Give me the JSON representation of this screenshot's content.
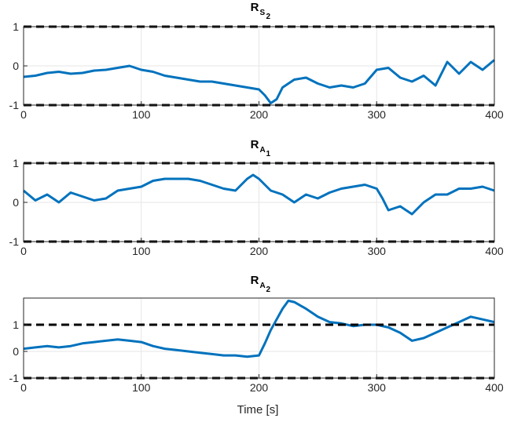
{
  "figure": {
    "xlabel": "Time [s]"
  },
  "colors": {
    "series": "#0072BD",
    "bound": "#000000",
    "grid": "#e6e6e6",
    "axis": "#262626"
  },
  "chart_data": [
    {
      "type": "line",
      "title_main": "R",
      "title_sub1": "S",
      "title_sub2": "2",
      "xlim": [
        0,
        400
      ],
      "ylim": [
        -1,
        1
      ],
      "xticks": [
        0,
        100,
        200,
        300,
        400
      ],
      "yticks": [
        -1,
        0,
        1
      ],
      "bounds": [
        -1,
        1
      ],
      "grid": true,
      "series": [
        {
          "x": [
            0,
            10,
            20,
            30,
            40,
            50,
            60,
            70,
            80,
            90,
            100,
            110,
            120,
            130,
            140,
            150,
            160,
            170,
            180,
            190,
            200,
            205,
            210,
            215,
            220,
            230,
            240,
            250,
            260,
            270,
            280,
            290,
            300,
            310,
            320,
            330,
            340,
            350,
            360,
            370,
            380,
            390,
            400
          ],
          "values": [
            -0.28,
            -0.25,
            -0.18,
            -0.15,
            -0.2,
            -0.18,
            -0.12,
            -0.1,
            -0.05,
            0.0,
            -0.1,
            -0.15,
            -0.25,
            -0.3,
            -0.35,
            -0.4,
            -0.4,
            -0.45,
            -0.5,
            -0.55,
            -0.6,
            -0.75,
            -0.95,
            -0.85,
            -0.55,
            -0.35,
            -0.3,
            -0.45,
            -0.55,
            -0.5,
            -0.55,
            -0.45,
            -0.1,
            -0.05,
            -0.3,
            -0.4,
            -0.25,
            -0.5,
            0.1,
            -0.2,
            0.1,
            -0.1,
            0.15
          ]
        }
      ]
    },
    {
      "type": "line",
      "title_main": "R",
      "title_sub1": "A",
      "title_sub2": "1",
      "xlim": [
        0,
        400
      ],
      "ylim": [
        -1,
        1
      ],
      "xticks": [
        0,
        100,
        200,
        300,
        400
      ],
      "yticks": [
        -1,
        0,
        1
      ],
      "bounds": [
        -1,
        1
      ],
      "grid": true,
      "series": [
        {
          "x": [
            0,
            10,
            20,
            30,
            40,
            50,
            60,
            70,
            80,
            90,
            100,
            110,
            120,
            130,
            140,
            150,
            160,
            170,
            180,
            190,
            195,
            200,
            210,
            220,
            230,
            240,
            250,
            260,
            270,
            280,
            290,
            300,
            305,
            310,
            320,
            330,
            340,
            350,
            360,
            370,
            380,
            390,
            400
          ],
          "values": [
            0.3,
            0.05,
            0.2,
            0.0,
            0.25,
            0.15,
            0.05,
            0.1,
            0.3,
            0.35,
            0.4,
            0.55,
            0.6,
            0.6,
            0.6,
            0.55,
            0.45,
            0.35,
            0.3,
            0.6,
            0.7,
            0.6,
            0.3,
            0.2,
            0.0,
            0.2,
            0.1,
            0.25,
            0.35,
            0.4,
            0.45,
            0.35,
            0.1,
            -0.2,
            -0.1,
            -0.3,
            0.0,
            0.2,
            0.2,
            0.35,
            0.35,
            0.4,
            0.3
          ]
        }
      ]
    },
    {
      "type": "line",
      "title_main": "R",
      "title_sub1": "A",
      "title_sub2": "2",
      "xlim": [
        0,
        400
      ],
      "ylim": [
        -1,
        2
      ],
      "xticks": [
        0,
        100,
        200,
        300,
        400
      ],
      "yticks": [
        -1,
        0,
        1
      ],
      "bounds": [
        -1,
        1
      ],
      "grid": true,
      "series": [
        {
          "x": [
            0,
            10,
            20,
            30,
            40,
            50,
            60,
            70,
            80,
            90,
            100,
            110,
            120,
            130,
            140,
            150,
            160,
            170,
            180,
            190,
            200,
            205,
            210,
            215,
            220,
            225,
            230,
            240,
            250,
            260,
            270,
            280,
            290,
            300,
            310,
            320,
            330,
            340,
            350,
            360,
            370,
            380,
            390,
            400
          ],
          "values": [
            0.1,
            0.15,
            0.2,
            0.15,
            0.2,
            0.3,
            0.35,
            0.4,
            0.45,
            0.4,
            0.35,
            0.2,
            0.1,
            0.05,
            0.0,
            -0.05,
            -0.1,
            -0.15,
            -0.15,
            -0.2,
            -0.15,
            0.3,
            0.8,
            1.2,
            1.6,
            1.9,
            1.85,
            1.6,
            1.3,
            1.1,
            1.05,
            0.95,
            1.0,
            1.0,
            0.9,
            0.7,
            0.4,
            0.5,
            0.7,
            0.9,
            1.1,
            1.3,
            1.2,
            1.1
          ]
        }
      ]
    }
  ]
}
